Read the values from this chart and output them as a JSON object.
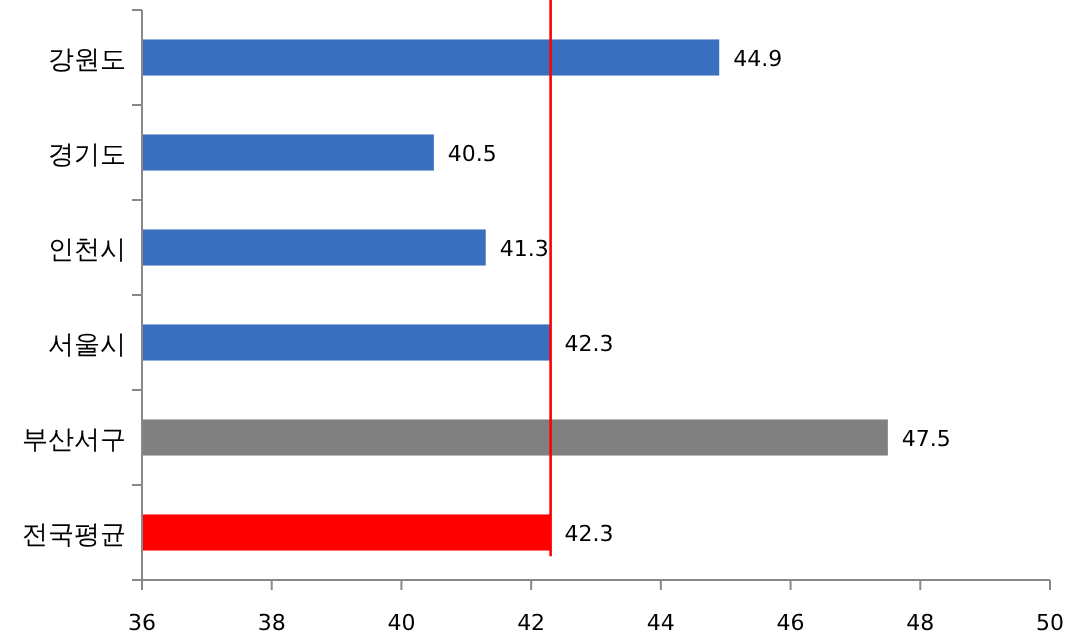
{
  "chart_data": {
    "type": "bar",
    "orientation": "horizontal",
    "categories": [
      "강원도",
      "경기도",
      "인천시",
      "서울시",
      "부산서구",
      "전국평균"
    ],
    "values": [
      44.9,
      40.5,
      41.3,
      42.3,
      47.5,
      42.3
    ],
    "colors": [
      "#3a6fbf",
      "#3a6fbf",
      "#3a6fbf",
      "#3a6fbf",
      "#808080",
      "#ff0000"
    ],
    "xlim": [
      36,
      50
    ],
    "xticks": [
      36,
      38,
      40,
      42,
      44,
      46,
      48,
      50
    ],
    "data_labels": true,
    "ref_lines": [
      {
        "axis": "x",
        "value": 42.3,
        "color": "#ff0000"
      }
    ]
  }
}
